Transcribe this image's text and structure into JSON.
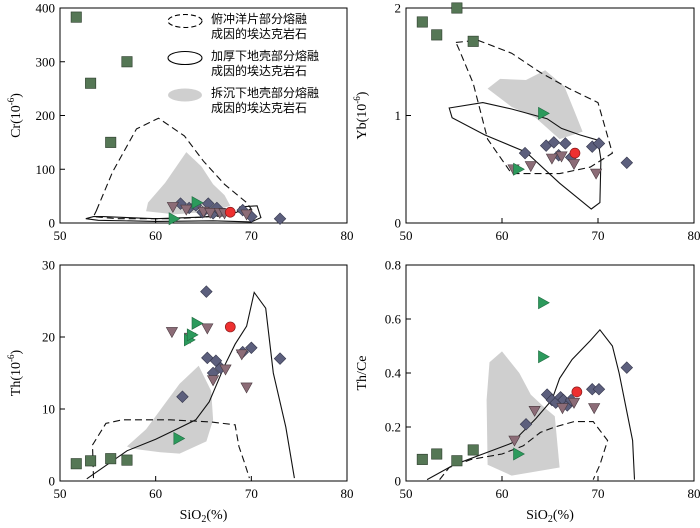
{
  "chart_data": [
    {
      "type": "scatter",
      "xlabel": "",
      "ylabel": "Cr(10-6)",
      "xlim": [
        50,
        80
      ],
      "ylim": [
        0,
        400
      ],
      "xticks": [
        50,
        60,
        70,
        80
      ],
      "yticks": [
        0,
        100,
        200,
        300,
        400
      ],
      "legend": {
        "position": "top-right",
        "entries": [
          {
            "label": "俯冲洋片部分熔融",
            "label2": "成因的埃达克岩石",
            "style": "dashed"
          },
          {
            "label": "加厚下地壳部分熔融",
            "label2": "成因的埃达克岩石",
            "style": "solid"
          },
          {
            "label": "拆沉下地壳部分熔融",
            "label2": "成因的埃达克岩石",
            "style": "gray-fill"
          }
        ]
      },
      "regions": {
        "dashed": [
          [
            53.8,
            23
          ],
          [
            55.5,
            95
          ],
          [
            58,
            175
          ],
          [
            60.3,
            195
          ],
          [
            63,
            162
          ],
          [
            65,
            115
          ],
          [
            67.2,
            72
          ],
          [
            69.5,
            38
          ],
          [
            70,
            26
          ],
          [
            67,
            13
          ],
          [
            62,
            8
          ],
          [
            56,
            8
          ],
          [
            53.5,
            12
          ]
        ],
        "solid": [
          [
            54.5,
            12
          ],
          [
            57,
            10
          ],
          [
            60,
            8
          ],
          [
            65,
            11
          ],
          [
            68.5,
            20
          ],
          [
            68.8,
            30
          ],
          [
            70.6,
            32
          ],
          [
            71,
            10
          ],
          [
            70,
            2
          ],
          [
            66,
            4
          ],
          [
            60,
            3
          ],
          [
            54,
            5
          ],
          [
            52.7,
            8
          ],
          [
            53.5,
            12
          ]
        ],
        "gray": [
          [
            59.2,
            38
          ],
          [
            61,
            75
          ],
          [
            63.2,
            132
          ],
          [
            64.8,
            105
          ],
          [
            66,
            72
          ],
          [
            67.2,
            52
          ],
          [
            67.8,
            32
          ],
          [
            66,
            22
          ],
          [
            62,
            16
          ],
          [
            59,
            22
          ]
        ]
      },
      "series": [
        {
          "marker": "square",
          "color": "#557755",
          "x": [
            51.7,
            53.2,
            57,
            55.3
          ],
          "y": [
            383,
            260,
            300,
            150
          ]
        },
        {
          "marker": "diamond",
          "color": "#5c5f7d",
          "x": [
            62.6,
            63.5,
            64.2,
            64.9,
            65.5,
            66,
            66.4,
            69.1,
            70,
            73
          ],
          "y": [
            36,
            28,
            33,
            20,
            36,
            18,
            28,
            24,
            12,
            8
          ]
        },
        {
          "marker": "triangle-down",
          "color": "#8c6c77",
          "x": [
            61.8,
            63.2,
            65,
            65.7,
            66.7,
            67.2,
            69.5
          ],
          "y": [
            30,
            25,
            21,
            19,
            19,
            18,
            16
          ]
        },
        {
          "marker": "triangle-right",
          "color": "#2c9a5c",
          "x": [
            61.9,
            64.3
          ],
          "y": [
            8,
            38
          ]
        },
        {
          "marker": "circle",
          "color": "#ee3030",
          "x": [
            67.8
          ],
          "y": [
            20
          ]
        }
      ]
    },
    {
      "type": "scatter",
      "xlabel": "",
      "ylabel": "Yb(10-6)",
      "xlim": [
        50,
        80
      ],
      "ylim": [
        0,
        2
      ],
      "xticks": [
        50,
        60,
        70,
        80
      ],
      "yticks": [
        0,
        1,
        2
      ],
      "regions": {
        "dashed": [
          [
            55.2,
            1.68
          ],
          [
            57.5,
            1.7
          ],
          [
            61,
            1.58
          ],
          [
            64,
            1.4
          ],
          [
            67,
            1.25
          ],
          [
            70,
            1.12
          ],
          [
            71.5,
            0.65
          ],
          [
            69.2,
            0.52
          ],
          [
            66,
            0.46
          ],
          [
            61,
            0.46
          ],
          [
            58.5,
            0.78
          ],
          [
            57,
            1.3
          ],
          [
            55.5,
            1.62
          ]
        ],
        "solid": [
          [
            54.5,
            1.07
          ],
          [
            58,
            1.12
          ],
          [
            61,
            1.06
          ],
          [
            64.7,
            0.97
          ],
          [
            66.2,
            0.88
          ],
          [
            68.1,
            0.82
          ],
          [
            70,
            0.77
          ],
          [
            70.3,
            0.59
          ],
          [
            70.2,
            0.19
          ],
          [
            69.3,
            0.13
          ],
          [
            66,
            0.37
          ],
          [
            62.5,
            0.66
          ],
          [
            58.2,
            0.82
          ],
          [
            54.8,
            0.98
          ]
        ],
        "gray": [
          [
            62.5,
            1.33
          ],
          [
            64.5,
            1.42
          ],
          [
            66.5,
            1.27
          ],
          [
            67.5,
            1.05
          ],
          [
            68.4,
            0.85
          ],
          [
            66,
            0.78
          ],
          [
            63.5,
            0.98
          ],
          [
            61,
            1.08
          ],
          [
            58.5,
            1.25
          ],
          [
            59.8,
            1.34
          ]
        ]
      },
      "series": [
        {
          "marker": "square",
          "color": "#557755",
          "x": [
            51.7,
            53.2,
            55.3,
            57
          ],
          "y": [
            1.87,
            1.75,
            2.0,
            1.69
          ]
        },
        {
          "marker": "diamond",
          "color": "#5c5f7d",
          "x": [
            62.4,
            64.6,
            65.4,
            65.9,
            66.6,
            67.2,
            69.4,
            70.1,
            73
          ],
          "y": [
            0.65,
            0.72,
            0.75,
            0.63,
            0.74,
            0.61,
            0.71,
            0.74,
            0.56
          ]
        },
        {
          "marker": "triangle-down",
          "color": "#8c6c77",
          "x": [
            61.2,
            63,
            65.2,
            66.2,
            67.5,
            69.8
          ],
          "y": [
            0.5,
            0.53,
            0.6,
            0.62,
            0.55,
            0.46
          ]
        },
        {
          "marker": "triangle-right",
          "color": "#2c9a5c",
          "x": [
            61.7,
            64.3
          ],
          "y": [
            0.5,
            1.02
          ]
        },
        {
          "marker": "circle",
          "color": "#ee3030",
          "x": [
            67.6
          ],
          "y": [
            0.65
          ]
        }
      ]
    },
    {
      "type": "scatter",
      "xlabel": "SiO2(%)",
      "ylabel": "Th(10-6)",
      "xlim": [
        50,
        80
      ],
      "ylim": [
        0,
        30
      ],
      "xticks": [
        50,
        60,
        70,
        80
      ],
      "yticks": [
        0,
        10,
        20,
        30
      ],
      "regions": {
        "dashed": [
          [
            53.5,
            0.4
          ],
          [
            53.4,
            5
          ],
          [
            54.8,
            8
          ],
          [
            56.5,
            8.5
          ],
          [
            61.5,
            8.5
          ],
          [
            65.8,
            8.2
          ],
          [
            68.3,
            7.8
          ],
          [
            68.7,
            4.8
          ],
          [
            69.3,
            2.5
          ],
          [
            69.8,
            0.4
          ]
        ],
        "solid": [
          [
            52.8,
            0.3
          ],
          [
            57,
            4.2
          ],
          [
            60,
            5.8
          ],
          [
            62.5,
            7.4
          ],
          [
            64.2,
            8.5
          ],
          [
            65.6,
            11
          ],
          [
            66.4,
            13.5
          ],
          [
            67.2,
            16
          ],
          [
            68.3,
            19
          ],
          [
            69.5,
            21.5
          ],
          [
            70.3,
            26.2
          ],
          [
            71.5,
            24
          ],
          [
            72.3,
            15
          ],
          [
            73.6,
            7.5
          ],
          [
            74.5,
            0.4
          ]
        ],
        "gray": [
          [
            57,
            4.8
          ],
          [
            59,
            7.2
          ],
          [
            61,
            10.8
          ],
          [
            62.5,
            13.5
          ],
          [
            64.5,
            16
          ],
          [
            65.8,
            12.5
          ],
          [
            66,
            8.5
          ],
          [
            65.3,
            5.5
          ],
          [
            62.5,
            3.8
          ],
          [
            60.5,
            4
          ],
          [
            57.5,
            4.5
          ]
        ]
      },
      "series": [
        {
          "marker": "square",
          "color": "#557755",
          "x": [
            51.7,
            53.2,
            55.3,
            57
          ],
          "y": [
            2.4,
            2.8,
            3.1,
            2.9
          ]
        },
        {
          "marker": "diamond",
          "color": "#5c5f7d",
          "x": [
            62.8,
            65.3,
            65.4,
            66,
            66.3,
            66.8,
            69.1,
            70,
            73
          ],
          "y": [
            11.7,
            26.3,
            17.1,
            15,
            16.7,
            15.7,
            17.9,
            18.5,
            17
          ]
        },
        {
          "marker": "triangle-down",
          "color": "#8c6c77",
          "x": [
            61.7,
            63.6,
            65.4,
            66,
            67.3,
            69,
            69.5
          ],
          "y": [
            20.7,
            19.9,
            21.2,
            14,
            15.5,
            17.6,
            13
          ]
        },
        {
          "marker": "triangle-right",
          "color": "#2c9a5c",
          "x": [
            62.4,
            63.5,
            63.8,
            64.3
          ],
          "y": [
            5.9,
            19.6,
            20.3,
            21.9
          ]
        },
        {
          "marker": "circle",
          "color": "#ee3030",
          "x": [
            67.8
          ],
          "y": [
            21.4
          ]
        }
      ]
    },
    {
      "type": "scatter",
      "xlabel": "SiO2(%)",
      "ylabel": "Th/Ce",
      "xlim": [
        50,
        80
      ],
      "ylim": [
        0,
        0.8
      ],
      "xticks": [
        50,
        60,
        70,
        80
      ],
      "yticks": [
        0,
        0.2,
        0.4,
        0.6,
        0.8
      ],
      "regions": {
        "dashed": [
          [
            53.5,
            0.005
          ],
          [
            54.5,
            0.05
          ],
          [
            56.8,
            0.08
          ],
          [
            60,
            0.1
          ],
          [
            62.2,
            0.13
          ],
          [
            64,
            0.18
          ],
          [
            65.5,
            0.2
          ],
          [
            67.5,
            0.22
          ],
          [
            69.5,
            0.22
          ],
          [
            71,
            0.15
          ],
          [
            70.2,
            0.06
          ],
          [
            69.5,
            0.005
          ]
        ],
        "solid": [
          [
            52.2,
            0.005
          ],
          [
            55,
            0.06
          ],
          [
            58,
            0.1
          ],
          [
            61,
            0.14
          ],
          [
            63.5,
            0.23
          ],
          [
            65.2,
            0.3
          ],
          [
            66,
            0.38
          ],
          [
            67.3,
            0.45
          ],
          [
            69.2,
            0.52
          ],
          [
            70.2,
            0.56
          ],
          [
            71.5,
            0.5
          ],
          [
            72.2,
            0.4
          ],
          [
            73.6,
            0.15
          ],
          [
            73.8,
            0.005
          ]
        ],
        "gray": [
          [
            58.7,
            0.44
          ],
          [
            60,
            0.48
          ],
          [
            61.8,
            0.4
          ],
          [
            63,
            0.32
          ],
          [
            64.5,
            0.27
          ],
          [
            65.5,
            0.24
          ],
          [
            66,
            0.05
          ],
          [
            61,
            0.02
          ],
          [
            58.5,
            0.06
          ],
          [
            58.4,
            0.3
          ]
        ]
      },
      "series": [
        {
          "marker": "square",
          "color": "#557755",
          "x": [
            51.7,
            53.2,
            55.3,
            57
          ],
          "y": [
            0.08,
            0.1,
            0.075,
            0.115
          ]
        },
        {
          "marker": "diamond",
          "color": "#5c5f7d",
          "x": [
            62.5,
            64.7,
            65.2,
            65.6,
            66.1,
            66.4,
            66.8,
            67.2,
            69.4,
            70.1,
            73
          ],
          "y": [
            0.21,
            0.32,
            0.3,
            0.29,
            0.31,
            0.3,
            0.28,
            0.3,
            0.34,
            0.34,
            0.42
          ]
        },
        {
          "marker": "triangle-down",
          "color": "#8c6c77",
          "x": [
            61.3,
            63.4,
            66.3,
            67.5,
            69.6
          ],
          "y": [
            0.15,
            0.26,
            0.27,
            0.29,
            0.27
          ]
        },
        {
          "marker": "triangle-right",
          "color": "#2c9a5c",
          "x": [
            61.7,
            64.3,
            64.3
          ],
          "y": [
            0.1,
            0.46,
            0.66
          ]
        },
        {
          "marker": "circle",
          "color": "#ee3030",
          "x": [
            67.8
          ],
          "y": [
            0.33
          ]
        }
      ]
    }
  ]
}
